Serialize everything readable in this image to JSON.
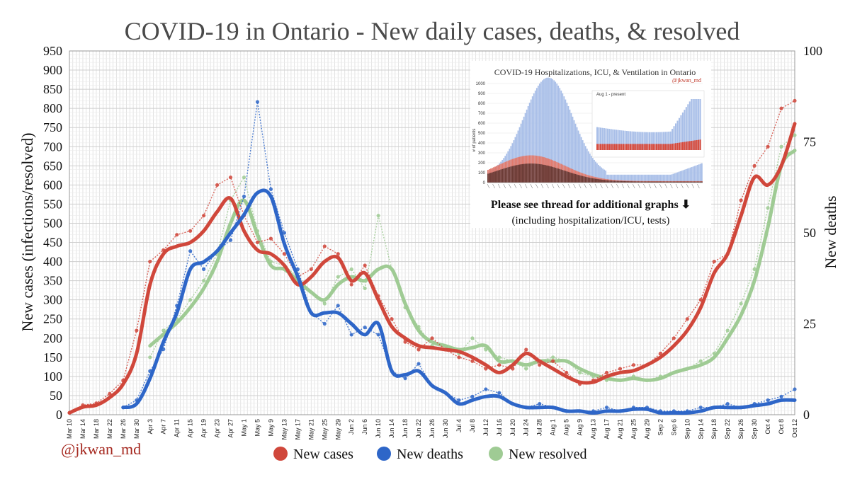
{
  "chart_data": {
    "type": "line",
    "title": "COVID-19 in Ontario - New daily cases, deaths, & resolved",
    "ylabel_left": "New cases (infections/resolved)",
    "ylabel_right": "New deaths",
    "ylim_left": [
      0,
      950
    ],
    "ylim_right": [
      0,
      100
    ],
    "yticks_left": [
      0,
      50,
      100,
      150,
      200,
      250,
      300,
      350,
      400,
      450,
      500,
      550,
      600,
      650,
      700,
      750,
      800,
      850,
      900,
      950
    ],
    "yticks_right": [
      0,
      25,
      50,
      75,
      100
    ],
    "grid": true,
    "legend_position": "bottom-center",
    "x_tick_labels": [
      "Mar 10",
      "Mar 14",
      "Mar 18",
      "Mar 22",
      "Mar 26",
      "Mar 30",
      "Apr 3",
      "Apr 7",
      "Apr 11",
      "Apr 15",
      "Apr 19",
      "Apr 23",
      "Apr 27",
      "May 1",
      "May 5",
      "May 9",
      "May 13",
      "May 17",
      "May 21",
      "May 25",
      "May 29",
      "Jun 2",
      "Jun 6",
      "Jun 10",
      "Jun 14",
      "Jun 18",
      "Jun 22",
      "Jun 26",
      "Jun 30",
      "Jul 4",
      "Jul 8",
      "Jul 12",
      "Jul 16",
      "Jul 20",
      "Jul 24",
      "Jul 28",
      "Aug 1",
      "Aug 5",
      "Aug 9",
      "Aug 13",
      "Aug 17",
      "Aug 21",
      "Aug 25",
      "Aug 29",
      "Sep 2",
      "Sep 6",
      "Sep 10",
      "Sep 14",
      "Sep 18",
      "Sep 22",
      "Sep 26",
      "Sep 30",
      "Oct 4",
      "Oct 8",
      "Oct 12"
    ],
    "series": [
      {
        "name": "New cases",
        "axis": "left",
        "color": "#d0473b",
        "x": [
          "Mar 10",
          "Mar 14",
          "Mar 18",
          "Mar 22",
          "Mar 26",
          "Mar 30",
          "Apr 3",
          "Apr 7",
          "Apr 11",
          "Apr 15",
          "Apr 19",
          "Apr 23",
          "Apr 27",
          "May 1",
          "May 5",
          "May 9",
          "May 13",
          "May 17",
          "May 21",
          "May 25",
          "May 29",
          "Jun 2",
          "Jun 6",
          "Jun 10",
          "Jun 14",
          "Jun 18",
          "Jun 22",
          "Jun 26",
          "Jun 30",
          "Jul 4",
          "Jul 8",
          "Jul 12",
          "Jul 16",
          "Jul 20",
          "Jul 24",
          "Jul 28",
          "Aug 1",
          "Aug 5",
          "Aug 9",
          "Aug 13",
          "Aug 17",
          "Aug 21",
          "Aug 25",
          "Aug 29",
          "Sep 2",
          "Sep 6",
          "Sep 10",
          "Sep 14",
          "Sep 18",
          "Sep 22",
          "Sep 26",
          "Sep 30",
          "Oct 4",
          "Oct 8",
          "Oct 12"
        ],
        "avg": [
          5,
          20,
          25,
          45,
          80,
          160,
          340,
          420,
          440,
          450,
          480,
          530,
          565,
          480,
          430,
          420,
          390,
          340,
          360,
          400,
          410,
          350,
          370,
          300,
          230,
          200,
          180,
          175,
          170,
          165,
          150,
          130,
          110,
          130,
          160,
          140,
          120,
          100,
          85,
          85,
          100,
          110,
          115,
          130,
          150,
          180,
          220,
          280,
          370,
          420,
          520,
          620,
          600,
          650,
          760
        ],
        "daily": [
          5,
          25,
          30,
          55,
          90,
          220,
          400,
          430,
          470,
          480,
          520,
          600,
          620,
          520,
          450,
          460,
          420,
          360,
          380,
          440,
          420,
          340,
          390,
          310,
          250,
          190,
          170,
          200,
          170,
          150,
          140,
          120,
          130,
          120,
          170,
          130,
          140,
          110,
          80,
          90,
          110,
          120,
          130,
          130,
          160,
          200,
          250,
          300,
          400,
          420,
          560,
          650,
          700,
          800,
          820
        ]
      },
      {
        "name": "New deaths",
        "axis": "right",
        "color": "#2e66c8",
        "x": [
          "Mar 26",
          "Mar 30",
          "Apr 3",
          "Apr 7",
          "Apr 11",
          "Apr 15",
          "Apr 19",
          "Apr 23",
          "Apr 27",
          "May 1",
          "May 5",
          "May 9",
          "May 13",
          "May 17",
          "May 21",
          "May 25",
          "May 29",
          "Jun 2",
          "Jun 6",
          "Jun 10",
          "Jun 14",
          "Jun 18",
          "Jun 22",
          "Jun 26",
          "Jun 30",
          "Jul 4",
          "Jul 8",
          "Jul 12",
          "Jul 16",
          "Jul 20",
          "Jul 24",
          "Jul 28",
          "Aug 1",
          "Aug 5",
          "Aug 9",
          "Aug 13",
          "Aug 17",
          "Aug 21",
          "Aug 25",
          "Aug 29",
          "Sep 2",
          "Sep 6",
          "Sep 10",
          "Sep 14",
          "Sep 18",
          "Sep 22",
          "Sep 26",
          "Sep 30",
          "Oct 4",
          "Oct 8",
          "Oct 12"
        ],
        "avg": [
          2,
          3,
          10,
          20,
          28,
          40,
          42,
          45,
          50,
          55,
          61,
          60,
          47,
          38,
          28,
          28,
          28,
          25,
          22,
          25,
          12,
          11,
          12,
          8,
          6,
          3,
          4,
          5,
          5,
          3,
          2,
          2,
          2,
          1,
          1,
          0.5,
          1,
          1,
          1.5,
          1.5,
          0.5,
          0.5,
          0.5,
          1,
          2,
          2,
          2,
          2.5,
          3,
          4,
          4
        ],
        "daily": [
          2,
          4,
          12,
          18,
          30,
          45,
          40,
          45,
          48,
          60,
          86,
          62,
          50,
          40,
          28,
          25,
          30,
          22,
          24,
          22,
          12,
          10,
          14,
          8,
          6,
          4,
          5,
          7,
          6,
          3,
          2,
          3,
          2,
          1,
          1,
          1,
          2,
          1,
          2,
          2,
          1,
          1,
          1,
          2,
          2,
          3,
          2,
          3,
          4,
          5,
          7
        ]
      },
      {
        "name": "New resolved",
        "axis": "left",
        "color": "#9fcb94",
        "x": [
          "Apr 3",
          "Apr 7",
          "Apr 11",
          "Apr 15",
          "Apr 19",
          "Apr 23",
          "Apr 27",
          "May 1",
          "May 5",
          "May 9",
          "May 13",
          "May 17",
          "May 21",
          "May 25",
          "May 29",
          "Jun 2",
          "Jun 6",
          "Jun 10",
          "Jun 14",
          "Jun 18",
          "Jun 22",
          "Jun 26",
          "Jun 30",
          "Jul 4",
          "Jul 8",
          "Jul 12",
          "Jul 16",
          "Jul 20",
          "Jul 24",
          "Jul 28",
          "Aug 1",
          "Aug 5",
          "Aug 9",
          "Aug 13",
          "Aug 17",
          "Aug 21",
          "Aug 25",
          "Aug 29",
          "Sep 2",
          "Sep 6",
          "Sep 10",
          "Sep 14",
          "Sep 18",
          "Sep 22",
          "Sep 26",
          "Sep 30",
          "Oct 4",
          "Oct 8",
          "Oct 12"
        ],
        "avg": [
          180,
          210,
          240,
          280,
          330,
          400,
          500,
          560,
          470,
          390,
          380,
          350,
          320,
          300,
          340,
          360,
          350,
          380,
          380,
          290,
          220,
          190,
          180,
          170,
          175,
          180,
          140,
          140,
          130,
          140,
          140,
          140,
          120,
          105,
          95,
          90,
          95,
          90,
          95,
          110,
          120,
          130,
          150,
          200,
          260,
          350,
          490,
          650,
          690
        ],
        "daily": [
          150,
          220,
          250,
          300,
          350,
          420,
          560,
          620,
          480,
          400,
          390,
          360,
          320,
          290,
          360,
          380,
          330,
          520,
          380,
          280,
          230,
          180,
          170,
          160,
          200,
          170,
          150,
          140,
          120,
          140,
          150,
          140,
          110,
          100,
          90,
          90,
          100,
          90,
          100,
          110,
          120,
          140,
          160,
          220,
          290,
          380,
          540,
          700,
          730
        ]
      }
    ],
    "legend": [
      {
        "label": "New cases",
        "color": "#d0473b"
      },
      {
        "label": "New deaths",
        "color": "#2e66c8"
      },
      {
        "label": "New resolved",
        "color": "#9fcb94"
      }
    ],
    "handle": "@jkwan_md",
    "inset": {
      "title": "COVID-19 Hospitalizations, ICU, & Ventilation in Ontario",
      "handle": "@jkwan_md",
      "ylabel": "# of patients",
      "yticks": [
        0,
        100,
        200,
        300,
        400,
        500,
        600,
        700,
        800,
        900,
        1000
      ],
      "sub_label": "Aug 1 - present",
      "note_line1": "Please see thread for additional graphs ⬇",
      "note_line2": "(including hospitalization/ICU, tests)"
    }
  }
}
